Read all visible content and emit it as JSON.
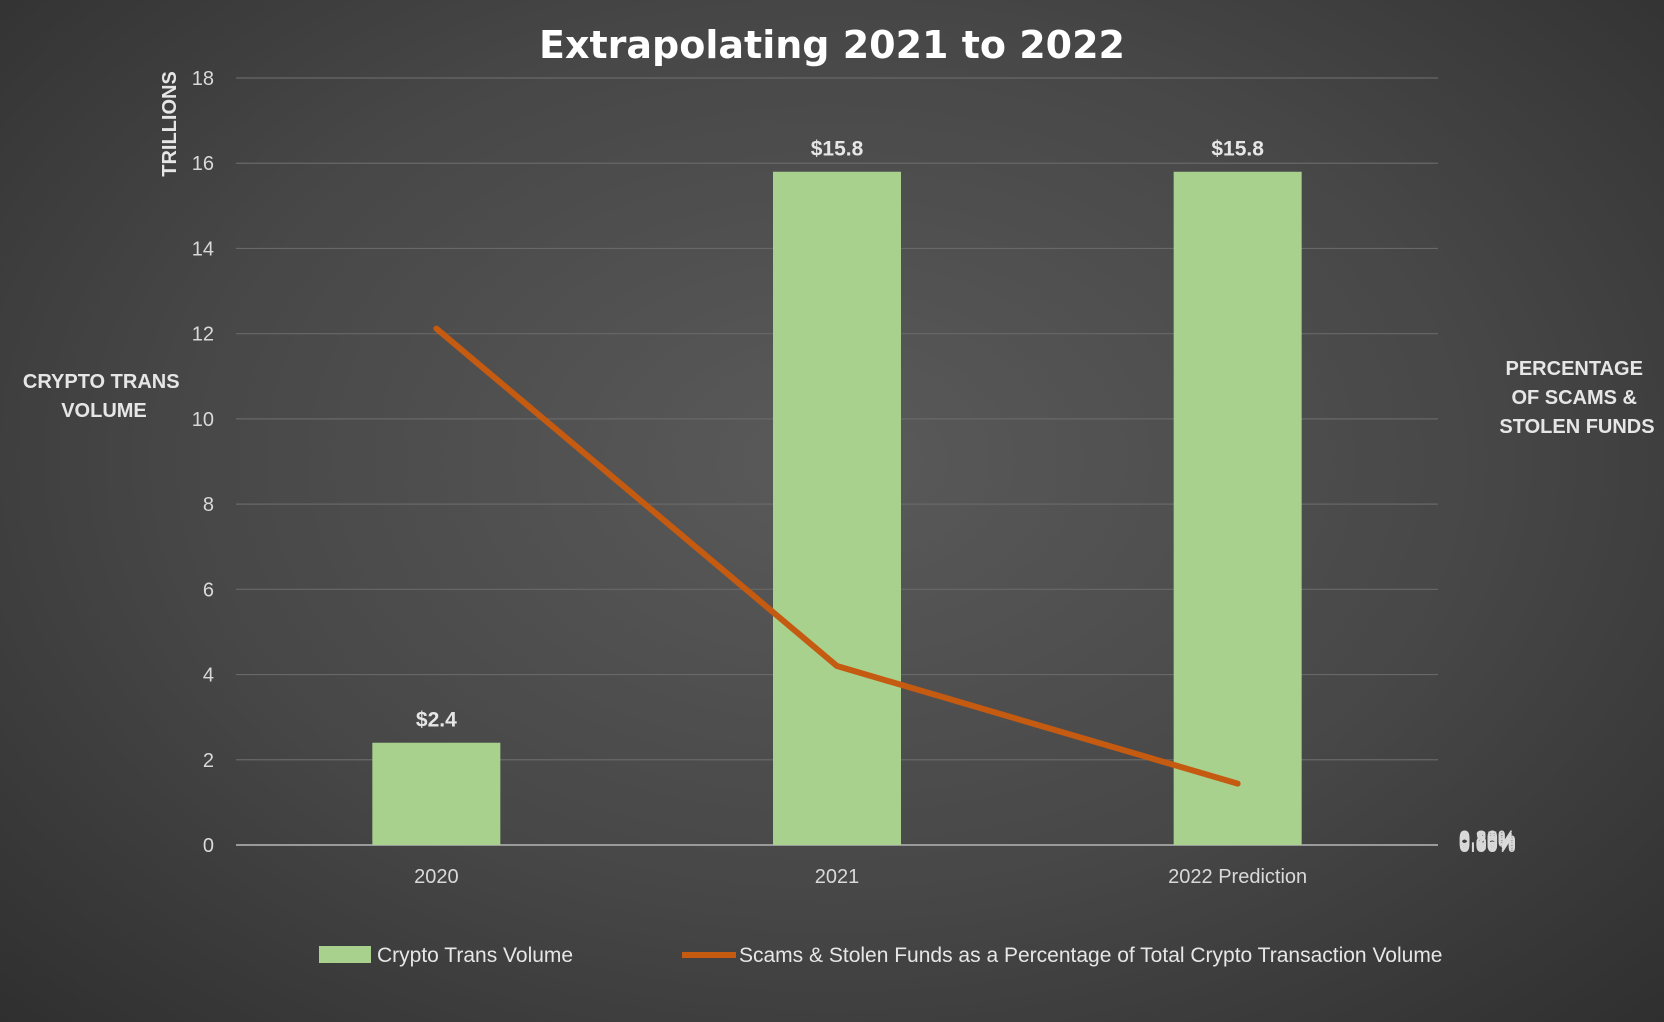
{
  "chart_data": {
    "type": "bar",
    "title": "Extrapolating 2021 to 2022",
    "categories": [
      "2020",
      "2021",
      "2022 Prediction"
    ],
    "series": [
      {
        "name": "Crypto Trans Volume",
        "type": "bar",
        "axis": "left",
        "values": [
          2.4,
          15.8,
          15.8
        ],
        "data_labels": [
          "$2.4",
          "$15.8",
          "$15.8"
        ],
        "color": "#a9d18e"
      },
      {
        "name": "Scams & Stolen Funds as a Percentage of Total Crypto Transaction Volume",
        "type": "line",
        "axis": "right",
        "values": [
          0.202,
          0.07,
          0.024
        ],
        "color": "#c55a11"
      }
    ],
    "y_left": {
      "range": [
        0,
        18
      ],
      "ticks": [
        "0",
        "2",
        "4",
        "6",
        "8",
        "10",
        "12",
        "14",
        "16",
        "18"
      ],
      "label_units": "TRILLIONS",
      "label_lines": [
        "CRYPTO TRANS",
        "VOLUME"
      ]
    },
    "y_right": {
      "range": [
        0,
        0.3
      ],
      "ticks": [
        "0.00%",
        "0.05%",
        "0.10%",
        "0.15%",
        "0.20%",
        "0.25%",
        "0.30%"
      ],
      "label_lines": [
        "PERCENTAGE",
        "OF SCAMS &",
        "STOLEN FUNDS"
      ]
    },
    "grid": true,
    "legend_position": "bottom"
  }
}
